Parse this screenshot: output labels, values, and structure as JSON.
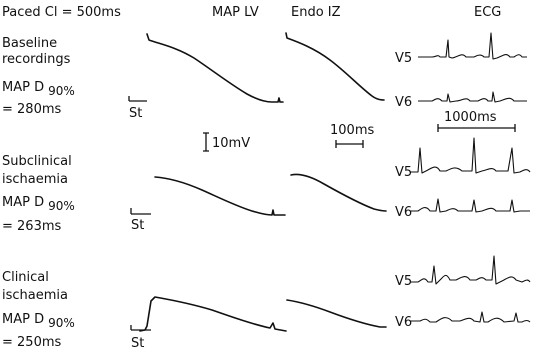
{
  "header": {
    "paced": "Paced Cl = 500ms",
    "map_lv": "MAP LV",
    "endo_iz": "Endo IZ",
    "ecg": "ECG"
  },
  "rows": [
    {
      "title_line1": "Baseline",
      "title_line2": "recordings",
      "map_prefix": "MAP D",
      "map_sub": "90%",
      "value": "= 280ms"
    },
    {
      "title_line1": "Subclinical",
      "title_line2": "ischaemia",
      "map_prefix": "MAP D",
      "map_sub": "90%",
      "value": "= 263ms"
    },
    {
      "title_line1": "Clinical",
      "title_line2": "ischaemia",
      "map_prefix": "MAP D",
      "map_sub": "90%",
      "value": "= 250ms"
    }
  ],
  "stimulus_label": "St",
  "scales": {
    "voltage": "10mV",
    "time_map": "100ms",
    "time_ecg": "1000ms"
  },
  "leads": [
    "V5",
    "V6"
  ]
}
